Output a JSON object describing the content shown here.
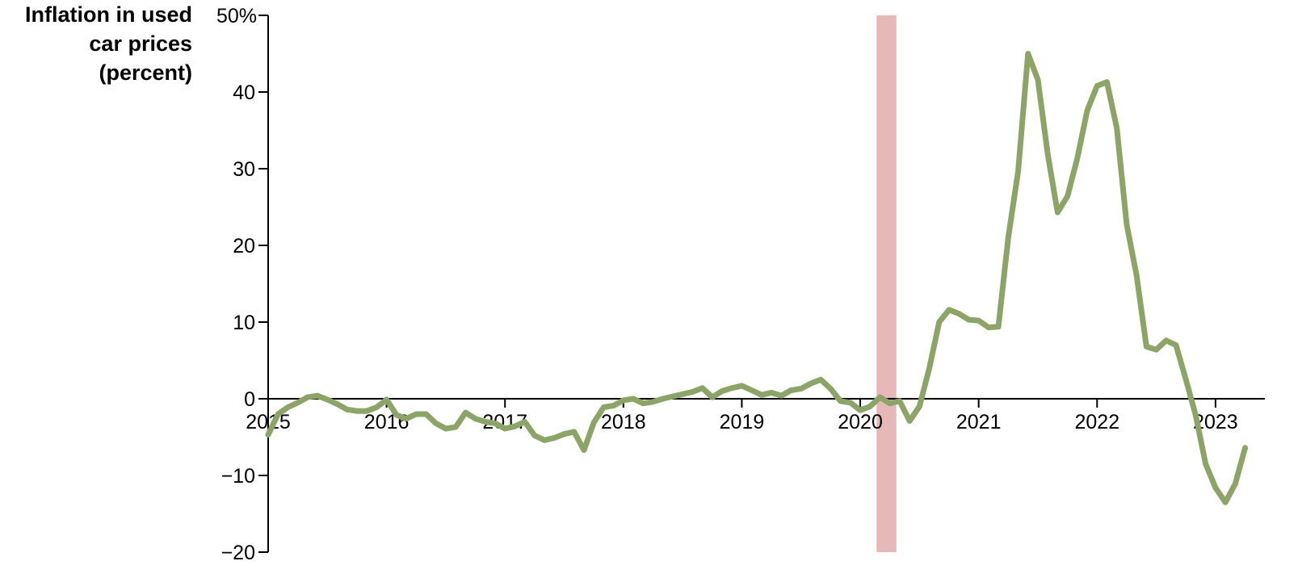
{
  "chart_data": {
    "type": "line",
    "ylabel_lines": [
      "Inflation in used",
      "car prices",
      "(percent)"
    ],
    "y_unit": "%",
    "ylim": [
      -20,
      50
    ],
    "yticks": [
      -20,
      -10,
      0,
      10,
      20,
      30,
      40,
      50
    ],
    "ytick_labels": [
      "−20",
      "−10",
      "0",
      "10",
      "20",
      "30",
      "40",
      "50%"
    ],
    "xlim": [
      "2015-01",
      "2023-06"
    ],
    "xtick_labels": [
      "2015",
      "2016",
      "2017",
      "2018",
      "2019",
      "2020",
      "2021",
      "2022",
      "2023"
    ],
    "grid": false,
    "highlight_band": {
      "start": "2020-02",
      "end": "2020-04",
      "color": "#e6b8b8"
    },
    "line_color": "#8da467",
    "series": [
      {
        "start": "2015-01",
        "frequency": "monthly",
        "values": [
          -4.7,
          -2.0,
          -1.1,
          -0.5,
          0.2,
          0.4,
          -0.1,
          -0.7,
          -1.4,
          -1.6,
          -1.6,
          -1.1,
          -0.1,
          -2.1,
          -2.6,
          -2.0,
          -2.0,
          -3.2,
          -3.9,
          -3.7,
          -1.8,
          -2.6,
          -3.0,
          -3.2,
          -3.9,
          -3.6,
          -3.0,
          -4.8,
          -5.4,
          -5.1,
          -4.6,
          -4.3,
          -6.7,
          -3.1,
          -1.1,
          -0.9,
          -0.2,
          0.0,
          -0.6,
          -0.4,
          0.0,
          0.3,
          0.6,
          0.9,
          1.4,
          0.2,
          1.0,
          1.4,
          1.7,
          1.1,
          0.5,
          0.8,
          0.4,
          1.1,
          1.3,
          2.0,
          2.5,
          1.3,
          -0.3,
          -0.5,
          -1.5,
          -1.0,
          0.2,
          -0.6,
          -0.3,
          -2.9,
          -1.0,
          4.0,
          10.0,
          11.6,
          11.1,
          10.3,
          10.2,
          9.3,
          9.4,
          21.0,
          29.7,
          45.0,
          41.6,
          31.9,
          24.3,
          26.4,
          31.4,
          37.6,
          40.8,
          41.3,
          35.3,
          22.7,
          16.1,
          6.8,
          6.4,
          7.6,
          7.0,
          2.5,
          -2.2,
          -8.5,
          -11.6,
          -13.5,
          -11.1,
          -6.4
        ]
      }
    ]
  }
}
